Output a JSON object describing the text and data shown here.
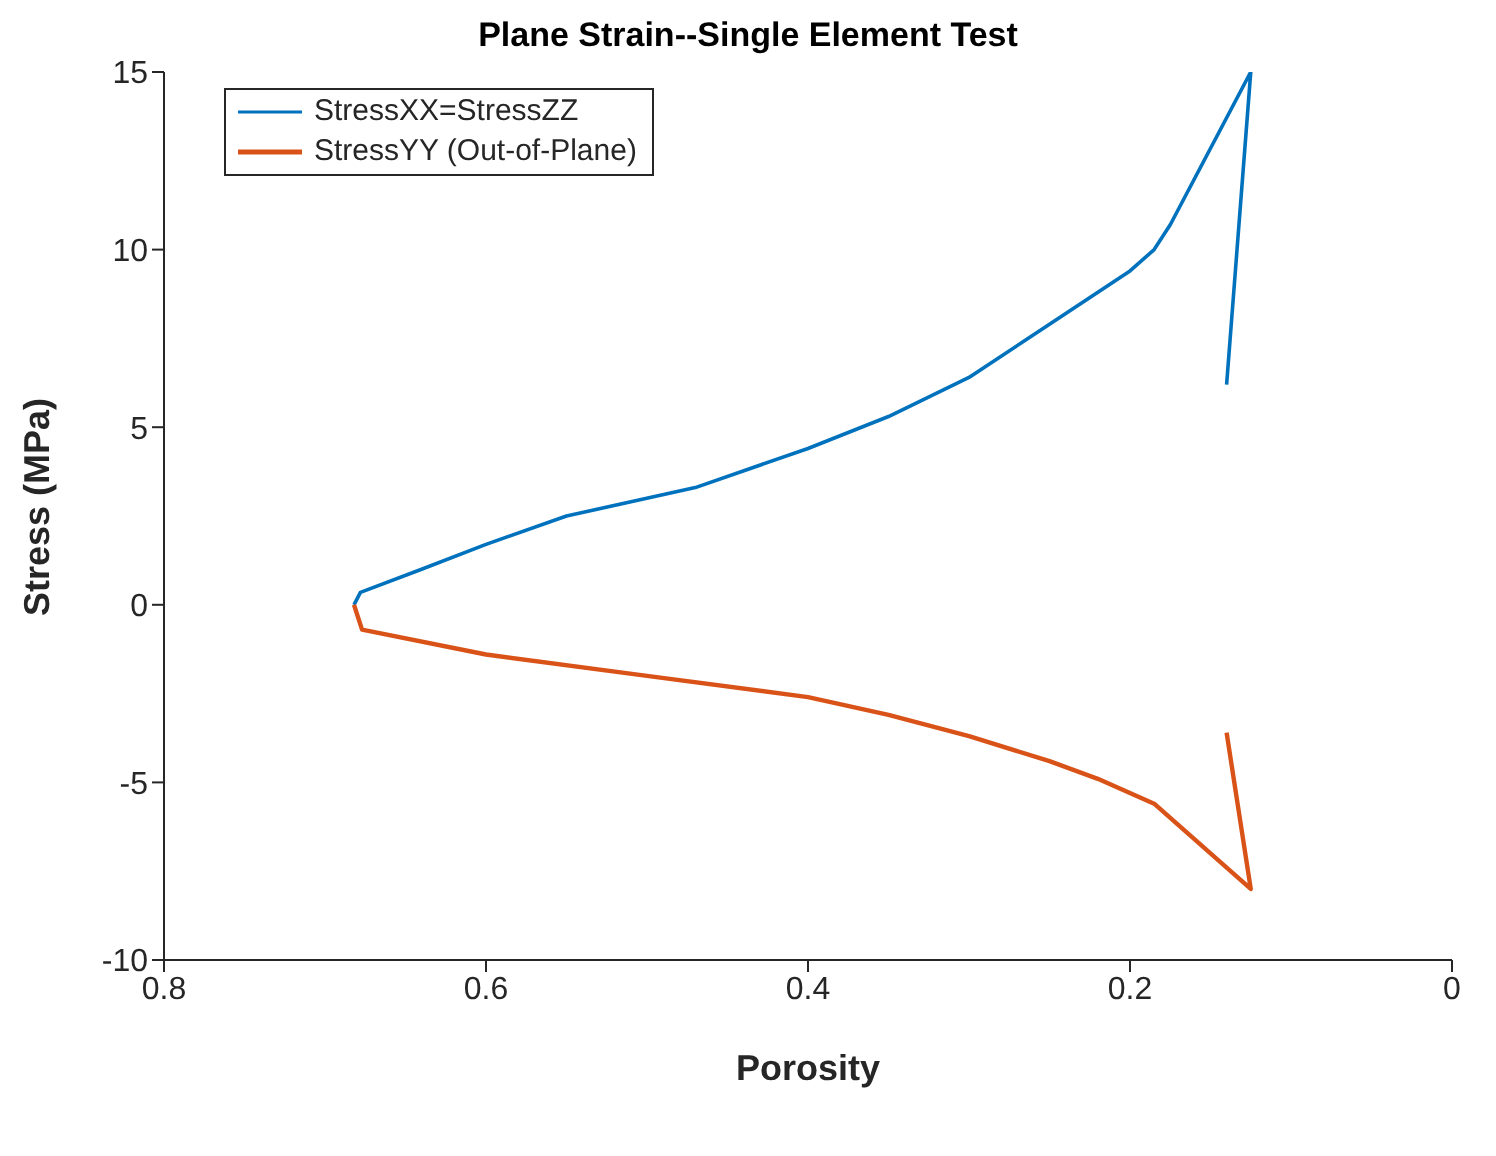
{
  "chart_data": {
    "type": "line",
    "title": "Plane Strain--Single Element Test",
    "xlabel": "Porosity",
    "ylabel": "Stress (MPa)",
    "xlim": [
      0.8,
      0
    ],
    "xticks": [
      0.8,
      0.6,
      0.4,
      0.2,
      0
    ],
    "ylim": [
      -10,
      15
    ],
    "yticks": [
      -10,
      -5,
      0,
      5,
      10,
      15
    ],
    "grid": false,
    "legend": "top left",
    "line_style": "solid",
    "marker": "none",
    "series": [
      {
        "name": "StressXX=StressZZ",
        "color": "#0072bd",
        "x": [
          0.682,
          0.678,
          0.64,
          0.6,
          0.55,
          0.47,
          0.4,
          0.35,
          0.3,
          0.25,
          0.2,
          0.185,
          0.175,
          0.125,
          0.14
        ],
        "values": [
          0,
          0.35,
          1.0,
          1.7,
          2.5,
          3.3,
          4.4,
          5.3,
          6.4,
          7.9,
          9.4,
          10.0,
          10.7,
          15,
          6.2
        ]
      },
      {
        "name": "StressYY (Out-of-Plane)",
        "color": "#d95319",
        "x": [
          0.682,
          0.677,
          0.6,
          0.5,
          0.4,
          0.35,
          0.3,
          0.25,
          0.22,
          0.185,
          0.15,
          0.125,
          0.14
        ],
        "values": [
          0,
          -0.7,
          -1.4,
          -2.0,
          -2.6,
          -3.1,
          -3.7,
          -4.4,
          -4.9,
          -5.6,
          -7.0,
          -8.0,
          -3.6
        ]
      }
    ]
  }
}
